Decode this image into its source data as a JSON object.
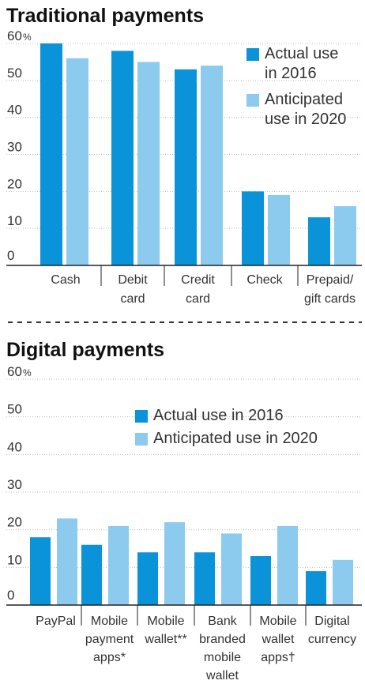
{
  "colors": {
    "actual": "#0a93d9",
    "anticipated": "#8ccbee"
  },
  "chart_data": [
    {
      "type": "bar",
      "title": "Traditional payments",
      "unit": "%",
      "categories": [
        [
          "Cash"
        ],
        [
          "Debit",
          "card"
        ],
        [
          "Credit",
          "card"
        ],
        [
          "Check"
        ],
        [
          "Prepaid/",
          "gift cards"
        ]
      ],
      "series": [
        {
          "name": [
            "Actual use",
            "in 2016"
          ],
          "values": [
            60,
            58,
            53,
            20,
            13
          ]
        },
        {
          "name": [
            "Anticipated",
            "use in 2020"
          ],
          "values": [
            56,
            55,
            54,
            19,
            16
          ]
        }
      ],
      "yticks": [
        "0",
        "10",
        "20",
        "30",
        "40",
        "50",
        "60"
      ],
      "ylim": [
        0,
        60
      ],
      "grid": true,
      "legend_position": "top-right"
    },
    {
      "type": "bar",
      "title": "Digital payments",
      "unit": "%",
      "categories": [
        [
          "PayPal"
        ],
        [
          "Mobile",
          "payment",
          "apps*"
        ],
        [
          "Mobile",
          "wallet**"
        ],
        [
          "Bank",
          "branded",
          "mobile",
          "wallet"
        ],
        [
          "Mobile",
          "wallet",
          "apps†"
        ],
        [
          "Digital",
          "currency"
        ]
      ],
      "series": [
        {
          "name": [
            "Actual use in 2016"
          ],
          "values": [
            18,
            16,
            14,
            14,
            13,
            9
          ]
        },
        {
          "name": [
            "Anticipated use in 2020"
          ],
          "values": [
            23,
            21,
            22,
            19,
            21,
            12
          ]
        }
      ],
      "yticks": [
        "0",
        "10",
        "20",
        "30",
        "40",
        "50",
        "60"
      ],
      "ylim": [
        0,
        60
      ],
      "grid": true,
      "legend_position": "top-center"
    }
  ]
}
